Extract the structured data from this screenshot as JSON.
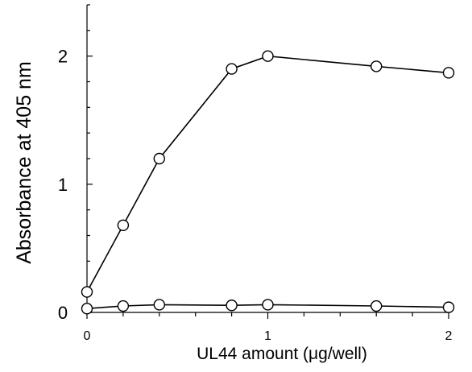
{
  "chart_data": {
    "type": "line",
    "xlabel": "UL44 amount (μg/well)",
    "ylabel": "Absorbance at 405 nm",
    "xlim": [
      0,
      2
    ],
    "ylim": [
      0,
      2.4
    ],
    "x_ticks": [
      "0",
      "1",
      "2"
    ],
    "y_ticks": [
      "0",
      "1",
      "2"
    ],
    "grid": false,
    "legend": "none",
    "series": [
      {
        "marker": "open-circle",
        "x": [
          0,
          0.2,
          0.4,
          0.8,
          1.0,
          1.6,
          2.0
        ],
        "y": [
          0.16,
          0.68,
          1.2,
          1.9,
          2.0,
          1.92,
          1.87
        ]
      },
      {
        "marker": "open-circle",
        "x": [
          0,
          0.2,
          0.4,
          0.8,
          1.0,
          1.6,
          2.0
        ],
        "y": [
          0.03,
          0.05,
          0.06,
          0.055,
          0.06,
          0.05,
          0.04
        ]
      }
    ]
  }
}
